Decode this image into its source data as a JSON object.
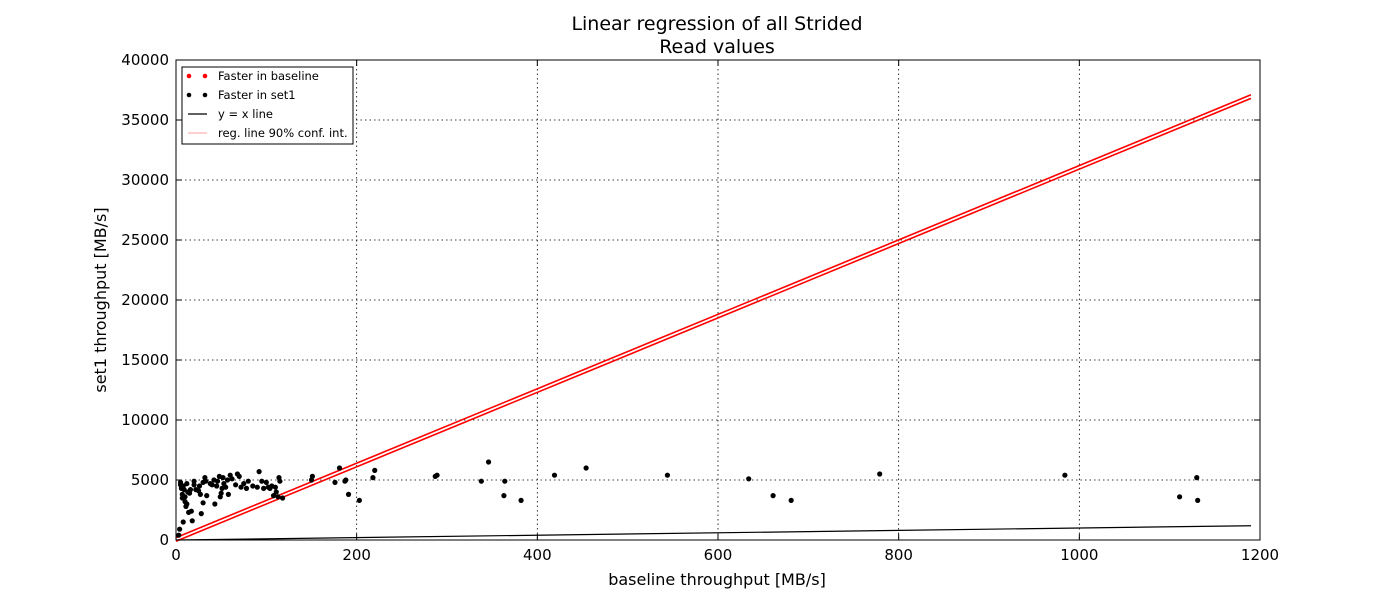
{
  "chart_data": {
    "type": "scatter",
    "title": "Linear regression of all Strided",
    "subtitle": "Read values",
    "xlabel": "baseline throughput [MB/s]",
    "ylabel": "set1 throughput [MB/s]",
    "xlim": [
      0,
      1200
    ],
    "ylim": [
      0,
      40000
    ],
    "xticks": [
      0,
      200,
      400,
      600,
      800,
      1000,
      1200
    ],
    "yticks": [
      0,
      5000,
      10000,
      15000,
      20000,
      25000,
      30000,
      35000,
      40000
    ],
    "grid": true,
    "legend_position": "top-left",
    "colors": {
      "faster_baseline": "#ff0000",
      "faster_set1": "#000000",
      "identity_line": "#000000",
      "regression_line": "#ff0000",
      "confidence_interval": "#ffb0b0"
    },
    "legend": [
      {
        "label": "Faster in baseline",
        "kind": "marker",
        "color": "#ff0000"
      },
      {
        "label": "Faster in set1",
        "kind": "marker",
        "color": "#000000"
      },
      {
        "label": "y = x line",
        "kind": "line",
        "color": "#000000"
      },
      {
        "label": "reg. line 90% conf. int.",
        "kind": "line",
        "color": "#ffb0b0"
      }
    ],
    "series": [
      {
        "name": "Faster in set1",
        "points": [
          [
            3,
            400
          ],
          [
            4,
            900
          ],
          [
            5,
            4800
          ],
          [
            5,
            4600
          ],
          [
            6,
            4300
          ],
          [
            7,
            3800
          ],
          [
            7,
            3500
          ],
          [
            8,
            1500
          ],
          [
            8,
            4500
          ],
          [
            9,
            4200
          ],
          [
            10,
            3600
          ],
          [
            10,
            3200
          ],
          [
            11,
            2800
          ],
          [
            12,
            4700
          ],
          [
            12,
            3000
          ],
          [
            13,
            4000
          ],
          [
            14,
            2300
          ],
          [
            15,
            3900
          ],
          [
            16,
            4200
          ],
          [
            17,
            2400
          ],
          [
            18,
            1600
          ],
          [
            20,
            4900
          ],
          [
            20,
            4600
          ],
          [
            22,
            4200
          ],
          [
            25,
            4100
          ],
          [
            26,
            4500
          ],
          [
            27,
            3800
          ],
          [
            28,
            2200
          ],
          [
            30,
            3100
          ],
          [
            30,
            4800
          ],
          [
            32,
            5200
          ],
          [
            33,
            4900
          ],
          [
            34,
            3700
          ],
          [
            38,
            4700
          ],
          [
            40,
            4600
          ],
          [
            42,
            5000
          ],
          [
            43,
            3000
          ],
          [
            45,
            4500
          ],
          [
            46,
            4900
          ],
          [
            48,
            5300
          ],
          [
            49,
            3600
          ],
          [
            50,
            3900
          ],
          [
            51,
            4300
          ],
          [
            52,
            5200
          ],
          [
            53,
            4700
          ],
          [
            55,
            4400
          ],
          [
            57,
            5000
          ],
          [
            58,
            3800
          ],
          [
            60,
            5400
          ],
          [
            62,
            5100
          ],
          [
            66,
            4600
          ],
          [
            68,
            5500
          ],
          [
            70,
            5300
          ],
          [
            72,
            4400
          ],
          [
            75,
            4700
          ],
          [
            78,
            4300
          ],
          [
            80,
            4900
          ],
          [
            85,
            4500
          ],
          [
            90,
            4400
          ],
          [
            92,
            5700
          ],
          [
            95,
            4900
          ],
          [
            97,
            4300
          ],
          [
            100,
            4800
          ],
          [
            102,
            4400
          ],
          [
            104,
            4300
          ],
          [
            106,
            4500
          ],
          [
            108,
            3700
          ],
          [
            110,
            4400
          ],
          [
            111,
            4000
          ],
          [
            113,
            3600
          ],
          [
            114,
            5200
          ],
          [
            115,
            4900
          ],
          [
            118,
            3500
          ],
          [
            150,
            5000
          ],
          [
            151,
            5300
          ],
          [
            176,
            4800
          ],
          [
            181,
            6000
          ],
          [
            187,
            4900
          ],
          [
            188,
            5000
          ],
          [
            191,
            3800
          ],
          [
            203,
            3300
          ],
          [
            218,
            5200
          ],
          [
            220,
            5800
          ],
          [
            287,
            5300
          ],
          [
            289,
            5400
          ],
          [
            338,
            4900
          ],
          [
            346,
            6500
          ],
          [
            363,
            3700
          ],
          [
            364,
            4900
          ],
          [
            382,
            3300
          ],
          [
            419,
            5400
          ],
          [
            454,
            6000
          ],
          [
            544,
            5400
          ],
          [
            634,
            5100
          ],
          [
            661,
            3700
          ],
          [
            681,
            3300
          ],
          [
            779,
            5500
          ],
          [
            984,
            5400
          ],
          [
            1111,
            3600
          ],
          [
            1130,
            5200
          ],
          [
            1131,
            3300
          ]
        ]
      },
      {
        "name": "Faster in baseline",
        "points": []
      }
    ],
    "identity_line": {
      "x": [
        0,
        1190
      ],
      "y": [
        0,
        1190
      ]
    },
    "regression_lines": [
      {
        "x": [
          0,
          1190
        ],
        "y": [
          -100,
          36800
        ]
      },
      {
        "x": [
          0,
          1190
        ],
        "y": [
          200,
          37100
        ]
      }
    ]
  }
}
